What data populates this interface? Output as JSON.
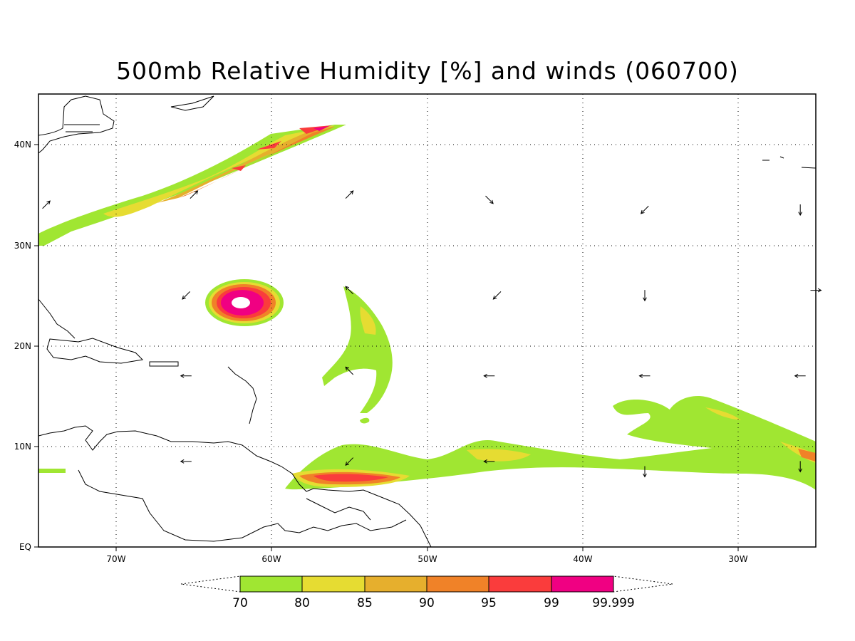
{
  "title": "500mb Relative Humidity [%] and winds (060700)",
  "axes": {
    "lon_labels": [
      "70W",
      "60W",
      "50W",
      "40W",
      "30W"
    ],
    "lat_labels": [
      "EQ",
      "10N",
      "20N",
      "30N",
      "40N"
    ],
    "lon_range": [
      -75,
      -25
    ],
    "lat_range": [
      0,
      45
    ],
    "grid": "dotted"
  },
  "colorbar": {
    "labels": [
      "70",
      "80",
      "85",
      "90",
      "95",
      "99",
      "99.999"
    ],
    "colors": [
      "#a0e632",
      "#e6dc32",
      "#e6af2d",
      "#f08228",
      "#fa3c3c",
      "#f00082"
    ],
    "extends": "both"
  },
  "features": {
    "hurricane_center": {
      "lon": -62,
      "lat": 24
    },
    "humidity_bands": [
      "northern jet band",
      "central tropical plume",
      "ITCZ band",
      "hurricane ring"
    ]
  },
  "wind_vectors": [
    {
      "lon": -74.5,
      "lat": 34,
      "dir": "NE"
    },
    {
      "lon": -65,
      "lat": 35,
      "dir": "NE"
    },
    {
      "lon": -55,
      "lat": 35,
      "dir": "NE"
    },
    {
      "lon": -46,
      "lat": 34.5,
      "dir": "SE"
    },
    {
      "lon": -36,
      "lat": 33.5,
      "dir": "SW"
    },
    {
      "lon": -26,
      "lat": 33.5,
      "dir": "S"
    },
    {
      "lon": -65.5,
      "lat": 25,
      "dir": "SW"
    },
    {
      "lon": -55,
      "lat": 25.5,
      "dir": "NW"
    },
    {
      "lon": -45.5,
      "lat": 25,
      "dir": "SW"
    },
    {
      "lon": -36,
      "lat": 25,
      "dir": "S"
    },
    {
      "lon": -25,
      "lat": 25.5,
      "dir": "E"
    },
    {
      "lon": -65.5,
      "lat": 17,
      "dir": "W"
    },
    {
      "lon": -55,
      "lat": 17.5,
      "dir": "NW"
    },
    {
      "lon": -46,
      "lat": 17,
      "dir": "W"
    },
    {
      "lon": -36,
      "lat": 17,
      "dir": "W"
    },
    {
      "lon": -26,
      "lat": 17,
      "dir": "W"
    },
    {
      "lon": -65.5,
      "lat": 8.5,
      "dir": "W"
    },
    {
      "lon": -55,
      "lat": 8.5,
      "dir": "SW"
    },
    {
      "lon": -46,
      "lat": 8.5,
      "dir": "W"
    },
    {
      "lon": -36,
      "lat": 7.5,
      "dir": "S"
    },
    {
      "lon": -26,
      "lat": 8,
      "dir": "S"
    }
  ]
}
